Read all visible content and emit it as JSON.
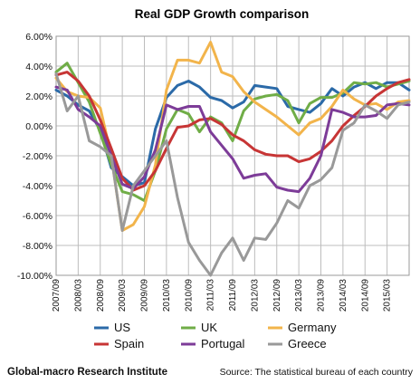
{
  "chart_data": {
    "type": "line",
    "title": "Real GDP Growth comparison",
    "xlabel": "",
    "ylabel": "",
    "ylim": [
      -10,
      6
    ],
    "yticks": [
      "6.00%",
      "4.00%",
      "2.00%",
      "0.00%",
      "-2.00%",
      "-4.00%",
      "-6.00%",
      "-8.00%",
      "-10.00%"
    ],
    "ytick_values": [
      6,
      4,
      2,
      0,
      -2,
      -4,
      -6,
      -8,
      -10
    ],
    "grid": true,
    "legend_position": "bottom",
    "x": [
      "2007/09",
      "2007/12",
      "2008/03",
      "2008/06",
      "2008/09",
      "2008/12",
      "2009/03",
      "2009/06",
      "2009/09",
      "2009/12",
      "2010/03",
      "2010/06",
      "2010/09",
      "2010/12",
      "2011/03",
      "2011/06",
      "2011/09",
      "2011/12",
      "2012/03",
      "2012/06",
      "2012/09",
      "2012/12",
      "2013/03",
      "2013/06",
      "2013/09",
      "2013/12",
      "2014/03",
      "2014/06",
      "2014/09",
      "2014/12",
      "2015/03",
      "2015/06",
      "2015/09"
    ],
    "xtick_labels": [
      "2007/09",
      "2008/03",
      "2008/09",
      "2009/03",
      "2009/09",
      "2010/03",
      "2010/09",
      "2011/03",
      "2011/09",
      "2012/03",
      "2012/09",
      "2013/03",
      "2013/09",
      "2014/03",
      "2014/09",
      "2015/03"
    ],
    "series": [
      {
        "name": "US",
        "color": "#2b6aa8",
        "values": [
          2.4,
          2.0,
          1.4,
          1.0,
          -0.3,
          -2.8,
          -3.4,
          -4.0,
          -3.8,
          -0.2,
          1.9,
          2.7,
          3.0,
          2.6,
          1.9,
          1.7,
          1.2,
          1.6,
          2.7,
          2.6,
          2.5,
          1.3,
          1.1,
          0.9,
          1.5,
          2.5,
          2.0,
          2.6,
          2.9,
          2.5,
          2.9,
          2.9,
          2.4
        ]
      },
      {
        "name": "UK",
        "color": "#70ad47",
        "values": [
          3.6,
          4.2,
          2.9,
          1.6,
          -0.5,
          -2.6,
          -4.4,
          -4.6,
          -5.0,
          -3.0,
          -0.2,
          1.1,
          0.8,
          -0.4,
          0.6,
          0.2,
          -1.0,
          1.0,
          1.8,
          2.0,
          2.1,
          1.7,
          0.2,
          1.5,
          1.9,
          1.9,
          2.2,
          2.9,
          2.8,
          2.9,
          2.6,
          2.8,
          3.0
        ]
      },
      {
        "name": "Germany",
        "color": "#f2b44b",
        "values": [
          3.2,
          2.3,
          2.0,
          1.9,
          1.2,
          -2.0,
          -7.0,
          -6.6,
          -5.4,
          -2.6,
          2.4,
          4.4,
          4.4,
          4.2,
          5.6,
          3.6,
          3.3,
          2.3,
          1.6,
          1.1,
          0.6,
          0.0,
          -0.6,
          0.2,
          0.5,
          1.3,
          2.4,
          1.8,
          1.4,
          1.5,
          1.1,
          1.6,
          1.7
        ]
      },
      {
        "name": "Spain",
        "color": "#c73535",
        "values": [
          3.4,
          3.6,
          3.0,
          2.0,
          0.4,
          -1.5,
          -3.5,
          -4.3,
          -4.0,
          -3.0,
          -1.5,
          -0.1,
          0.0,
          0.4,
          0.5,
          0.1,
          -0.6,
          -1.0,
          -1.6,
          -1.9,
          -2.0,
          -2.0,
          -2.4,
          -2.2,
          -1.7,
          -1.0,
          0.0,
          0.7,
          1.3,
          2.0,
          2.5,
          2.9,
          3.1
        ]
      },
      {
        "name": "Portugal",
        "color": "#7d3c98",
        "values": [
          2.6,
          2.4,
          1.1,
          0.6,
          0.0,
          -2.0,
          -3.9,
          -4.2,
          -3.4,
          -1.6,
          1.4,
          1.1,
          1.3,
          1.3,
          -0.4,
          -1.3,
          -2.2,
          -3.5,
          -3.3,
          -3.2,
          -4.1,
          -4.3,
          -4.4,
          -3.5,
          -2.0,
          1.1,
          0.9,
          0.6,
          0.6,
          0.7,
          1.4,
          1.5,
          1.4
        ]
      },
      {
        "name": "Greece",
        "color": "#999999",
        "values": [
          3.5,
          1.0,
          2.0,
          -1.0,
          -1.4,
          -2.0,
          -7.0,
          -4.0,
          -3.0,
          -2.0,
          -1.0,
          -4.8,
          -7.8,
          -9.0,
          -10.0,
          -8.5,
          -7.5,
          -9.0,
          -7.5,
          -7.6,
          -6.5,
          -5.0,
          -5.5,
          -4.0,
          -3.6,
          -2.8,
          -0.3,
          0.2,
          1.4,
          1.0,
          0.5,
          1.4,
          1.6
        ]
      }
    ]
  },
  "footer": {
    "left": "Global-macro Research Institute",
    "right": "Source: The statistical bureau of each country"
  }
}
